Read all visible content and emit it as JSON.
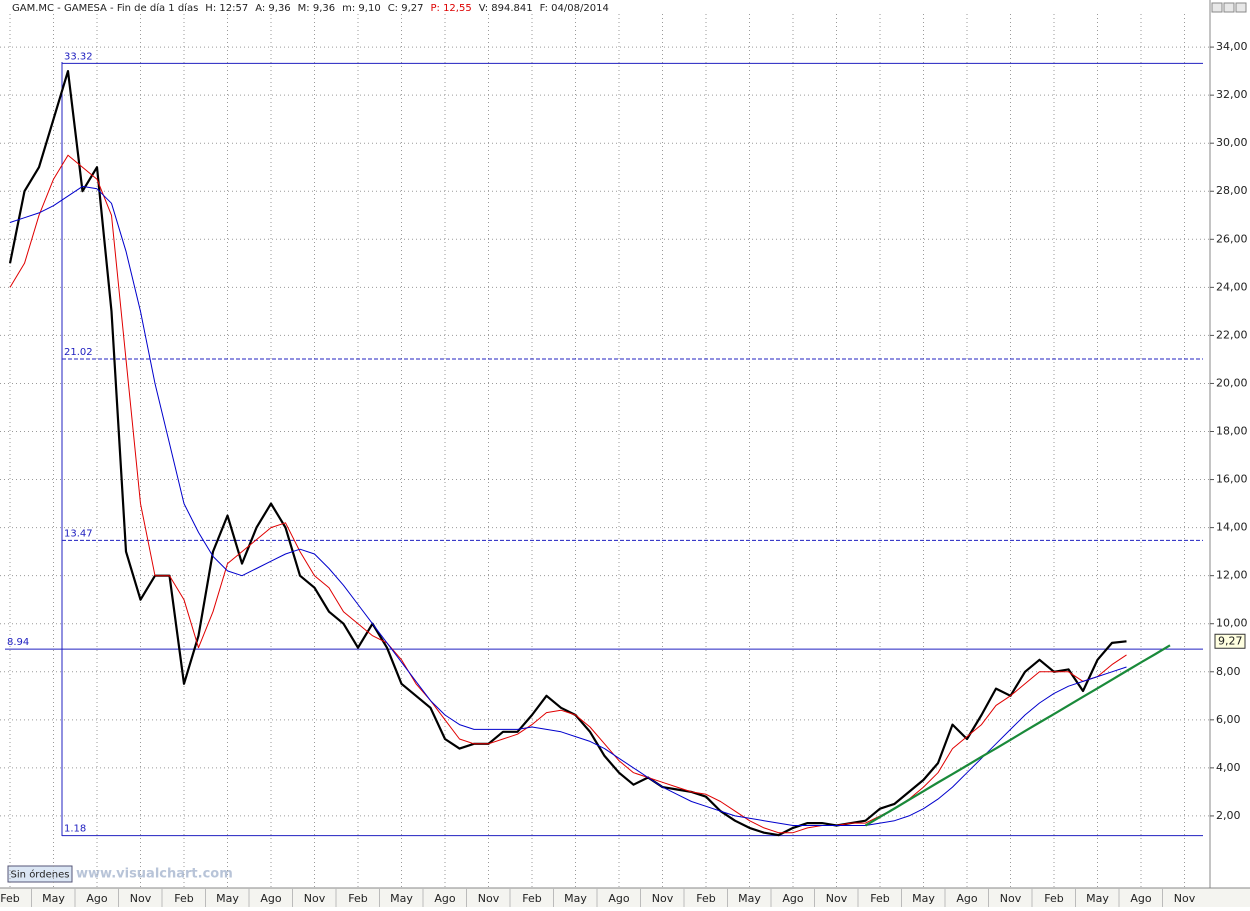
{
  "header": [
    "GAM.MC - GAMESA - Fin de día 1 días",
    "H: 12:57",
    "A: 9,36",
    "M: 9,36",
    "m: 9,10",
    "C: 9,27",
    "P: 12,55",
    "V: 894.841",
    "F: 04/08/2014"
  ],
  "footer": {
    "button": "Sin órdenes",
    "watermark": "www.visualchart.com"
  },
  "chart_data": {
    "type": "line",
    "categories": [
      "Feb",
      null,
      null,
      "May",
      null,
      null,
      "Ago",
      null,
      null,
      "Nov",
      null,
      null,
      "Feb",
      null,
      null,
      "May",
      null,
      null,
      "Ago",
      null,
      null,
      "Nov",
      null,
      null,
      "Feb",
      null,
      null,
      "May",
      null,
      null,
      "Ago",
      null,
      null,
      "Nov",
      null,
      null,
      "Feb",
      null,
      null,
      "May",
      null,
      null,
      "Ago",
      null,
      null,
      "Nov",
      null,
      null,
      "Feb",
      null,
      null,
      "May",
      null,
      null,
      "Ago",
      null,
      null,
      "Nov",
      null,
      null,
      "Feb",
      null,
      null,
      "May",
      null,
      null,
      "Ago",
      null,
      null,
      "Nov",
      null,
      null,
      "Feb",
      null,
      null,
      "May",
      null,
      null,
      "Ago",
      null,
      null,
      "Nov"
    ],
    "series": [
      {
        "color": "#000000",
        "width": 2.2,
        "values": [
          25,
          28,
          29,
          31,
          33,
          28,
          29,
          23,
          13,
          11,
          12,
          12,
          7.5,
          9.5,
          13,
          14.5,
          12.5,
          14,
          15,
          14,
          12,
          11.5,
          10.5,
          10,
          9,
          10,
          9,
          7.5,
          7,
          6.5,
          5.2,
          4.8,
          5,
          5,
          5.5,
          5.5,
          6.2,
          7,
          6.5,
          6.2,
          5.5,
          4.5,
          3.8,
          3.3,
          3.6,
          3.2,
          3.1,
          3.0,
          2.8,
          2.2,
          1.8,
          1.5,
          1.3,
          1.2,
          1.5,
          1.7,
          1.7,
          1.6,
          1.7,
          1.8,
          2.3,
          2.5,
          3.0,
          3.5,
          4.2,
          5.8,
          5.2,
          6.2,
          7.3,
          7.0,
          8.0,
          8.5,
          8.0,
          8.1,
          7.2,
          8.5,
          9.2,
          9.27,
          null,
          null,
          null,
          null
        ]
      },
      {
        "color": "#e00000",
        "width": 1,
        "values": [
          24,
          25,
          27,
          28.5,
          29.5,
          29,
          28.5,
          27,
          21,
          15,
          12,
          12,
          11,
          9,
          10.5,
          12.5,
          13,
          13.5,
          14,
          14.2,
          13,
          12,
          11.5,
          10.5,
          10,
          9.5,
          9.2,
          8.5,
          7.5,
          6.8,
          6,
          5.2,
          5,
          5,
          5.2,
          5.4,
          5.8,
          6.3,
          6.4,
          6.2,
          5.7,
          5,
          4.3,
          3.8,
          3.6,
          3.4,
          3.2,
          3.0,
          2.9,
          2.6,
          2.2,
          1.8,
          1.5,
          1.3,
          1.3,
          1.5,
          1.6,
          1.6,
          1.7,
          1.7,
          2.0,
          2.3,
          2.7,
          3.2,
          3.8,
          4.8,
          5.3,
          5.8,
          6.6,
          7.0,
          7.5,
          8.0,
          8.0,
          8.0,
          7.6,
          7.8,
          8.3,
          8.7,
          null,
          null,
          null,
          null
        ]
      },
      {
        "color": "#0000cc",
        "width": 1,
        "values": [
          26.7,
          26.9,
          27.1,
          27.4,
          27.8,
          28.2,
          28.1,
          27.5,
          25.5,
          23,
          20,
          17.5,
          15,
          13.8,
          12.8,
          12.2,
          12,
          12.3,
          12.6,
          12.9,
          13.1,
          12.9,
          12.3,
          11.6,
          10.8,
          10,
          9.2,
          8.4,
          7.6,
          6.8,
          6.2,
          5.8,
          5.6,
          5.6,
          5.6,
          5.6,
          5.7,
          5.6,
          5.5,
          5.3,
          5.1,
          4.8,
          4.4,
          4.0,
          3.6,
          3.2,
          2.9,
          2.6,
          2.4,
          2.2,
          2.0,
          1.9,
          1.8,
          1.7,
          1.6,
          1.6,
          1.6,
          1.6,
          1.6,
          1.6,
          1.7,
          1.8,
          2.0,
          2.3,
          2.7,
          3.2,
          3.8,
          4.4,
          5.0,
          5.6,
          6.2,
          6.7,
          7.1,
          7.4,
          7.6,
          7.8,
          8.0,
          8.2,
          null,
          null,
          null,
          null
        ]
      },
      {
        "color": "#1a8a3a",
        "width": 2.2,
        "values": [
          null,
          null,
          null,
          null,
          null,
          null,
          null,
          null,
          null,
          null,
          null,
          null,
          null,
          null,
          null,
          null,
          null,
          null,
          null,
          null,
          null,
          null,
          null,
          null,
          null,
          null,
          null,
          null,
          null,
          null,
          null,
          null,
          null,
          null,
          null,
          null,
          null,
          null,
          null,
          null,
          null,
          null,
          null,
          null,
          null,
          null,
          null,
          null,
          null,
          null,
          null,
          null,
          null,
          null,
          null,
          null,
          null,
          null,
          null,
          1.6,
          1.96,
          2.31,
          2.67,
          3.03,
          3.39,
          3.74,
          4.1,
          4.46,
          4.81,
          5.17,
          5.53,
          5.89,
          6.24,
          6.6,
          6.96,
          7.31,
          7.67,
          8.03,
          8.39,
          8.74,
          9.1,
          null
        ]
      }
    ],
    "levels": [
      {
        "value": 33.32,
        "style": "solid"
      },
      {
        "value": 21.02,
        "style": "dashed"
      },
      {
        "value": 13.47,
        "style": "dashed"
      },
      {
        "value": 8.94,
        "style": "solid",
        "full_width": true
      },
      {
        "value": 1.18,
        "style": "solid"
      }
    ],
    "level_color": "#2020c0",
    "current_price": {
      "value": 9.27,
      "label": "9,27"
    },
    "ylim": [
      -1.0,
      35.96
    ],
    "yticks": [
      {
        "value": 2,
        "label": "2,00"
      },
      {
        "value": 4,
        "label": "4,00"
      },
      {
        "value": 6,
        "label": "6,00"
      },
      {
        "value": 8,
        "label": "8,00"
      },
      {
        "value": 10,
        "label": "10,00"
      },
      {
        "value": 12,
        "label": "12,00"
      },
      {
        "value": 14,
        "label": "14,00"
      },
      {
        "value": 16,
        "label": "16,00"
      },
      {
        "value": 18,
        "label": "18,00"
      },
      {
        "value": 20,
        "label": "20,00"
      },
      {
        "value": 22,
        "label": "22,00"
      },
      {
        "value": 24,
        "label": "24,00"
      },
      {
        "value": 26,
        "label": "26,00"
      },
      {
        "value": 28,
        "label": "28,00"
      },
      {
        "value": 30,
        "label": "30,00"
      },
      {
        "value": 32,
        "label": "32,00"
      },
      {
        "value": 34,
        "label": "34,00"
      }
    ],
    "grid": true
  }
}
